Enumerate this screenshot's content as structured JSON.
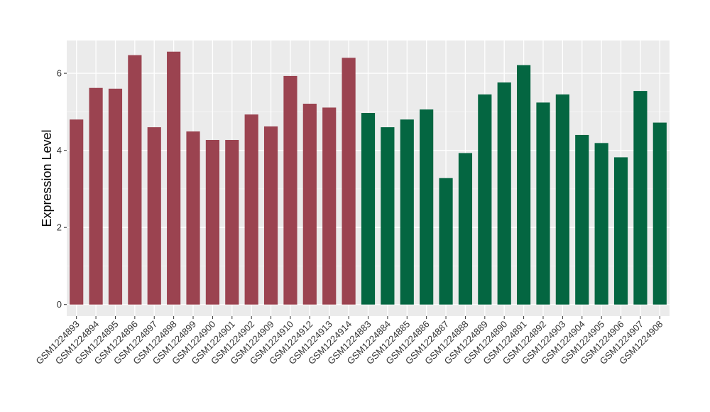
{
  "chart_data": {
    "type": "bar",
    "ylabel": "Expression Level",
    "xlabel": "",
    "ylim": [
      -0.3,
      6.85
    ],
    "yticks": [
      0,
      2,
      4,
      6
    ],
    "grid": true,
    "legend": "none",
    "background": "#EBEBEB",
    "group_colors": {
      "group1": "#9B4350",
      "group2": "#046641"
    },
    "categories": [
      "GSM1224893",
      "GSM1224894",
      "GSM1224895",
      "GSM1224896",
      "GSM1224897",
      "GSM1224898",
      "GSM1224899",
      "GSM1224900",
      "GSM1224901",
      "GSM1224902",
      "GSM1224909",
      "GSM1224910",
      "GSM1224912",
      "GSM1224913",
      "GSM1224914",
      "GSM1224883",
      "GSM1224884",
      "GSM1224885",
      "GSM1224886",
      "GSM1224887",
      "GSM1224888",
      "GSM1224889",
      "GSM1224890",
      "GSM1224891",
      "GSM1224892",
      "GSM1224903",
      "GSM1224904",
      "GSM1224905",
      "GSM1224906",
      "GSM1224907",
      "GSM1224908"
    ],
    "values": [
      4.8,
      5.62,
      5.6,
      6.47,
      4.6,
      6.56,
      4.49,
      4.27,
      4.27,
      4.93,
      4.62,
      5.93,
      5.21,
      5.11,
      6.4,
      4.97,
      4.6,
      4.8,
      5.06,
      3.28,
      3.93,
      5.45,
      5.76,
      6.21,
      5.24,
      5.45,
      4.4,
      4.19,
      3.82,
      5.54,
      4.72
    ],
    "groups": [
      "group1",
      "group1",
      "group1",
      "group1",
      "group1",
      "group1",
      "group1",
      "group1",
      "group1",
      "group1",
      "group1",
      "group1",
      "group1",
      "group1",
      "group1",
      "group2",
      "group2",
      "group2",
      "group2",
      "group2",
      "group2",
      "group2",
      "group2",
      "group2",
      "group2",
      "group2",
      "group2",
      "group2",
      "group2",
      "group2",
      "group2"
    ]
  }
}
